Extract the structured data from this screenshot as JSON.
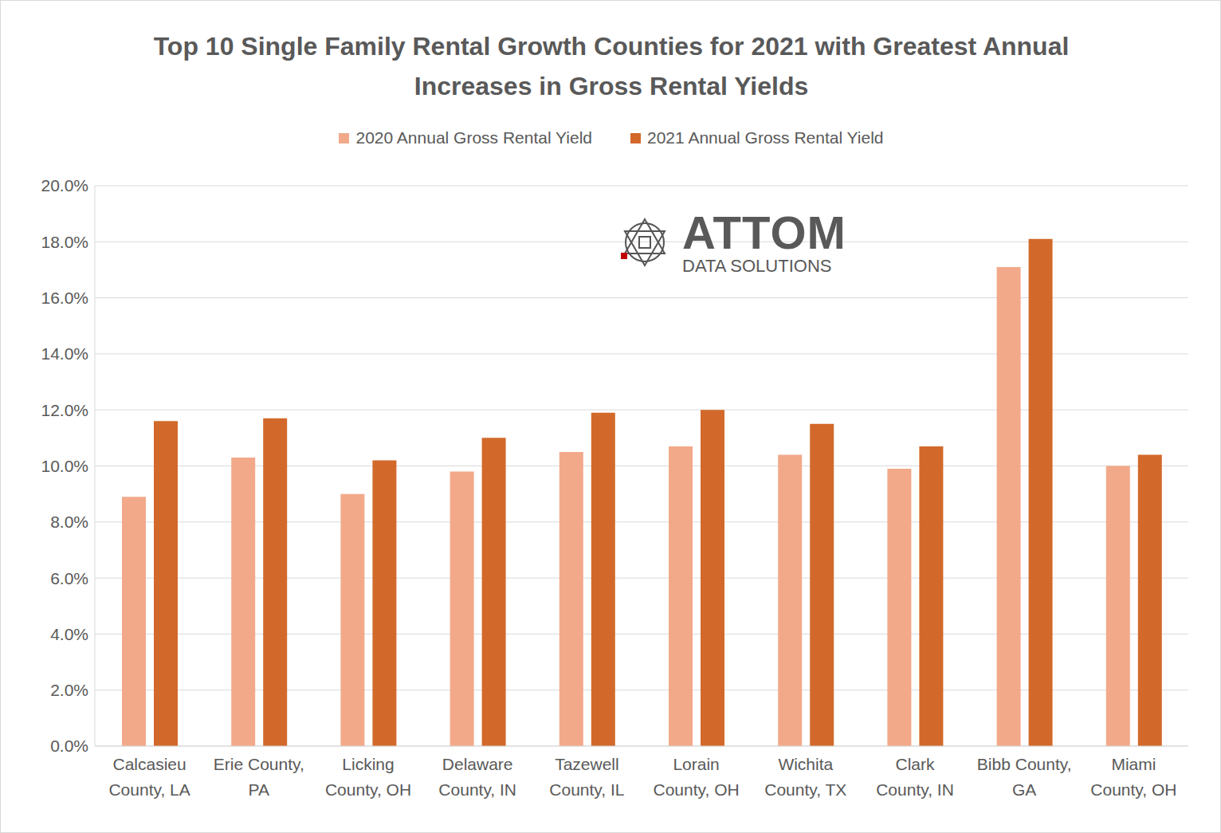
{
  "chart_data": {
    "type": "bar",
    "title": "Top 10 Single Family Rental Growth Counties for 2021 with Greatest Annual Increases in Gross Rental Yields",
    "categories": [
      "Calcasieu County, LA",
      "Erie County, PA",
      "Licking County, OH",
      "Delaware County, IN",
      "Tazewell County, IL",
      "Lorain County, OH",
      "Wichita County, TX",
      "Clark County, IN",
      "Bibb County, GA",
      "Miami County, OH"
    ],
    "series": [
      {
        "name": "2020 Annual Gross Rental Yield",
        "color": "#f2a98a",
        "values": [
          8.9,
          10.3,
          9.0,
          9.8,
          10.5,
          10.7,
          10.4,
          9.9,
          17.1,
          10.0
        ]
      },
      {
        "name": "2021 Annual Gross Rental Yield",
        "color": "#d2692b",
        "values": [
          11.6,
          11.7,
          10.2,
          11.0,
          11.9,
          12.0,
          11.5,
          10.7,
          18.1,
          10.4
        ]
      }
    ],
    "ylim": [
      0,
      20
    ],
    "yticks": [
      {
        "value": 0,
        "label": "0.0%"
      },
      {
        "value": 2,
        "label": "2.0%"
      },
      {
        "value": 4,
        "label": "4.0%"
      },
      {
        "value": 6,
        "label": "6.0%"
      },
      {
        "value": 8,
        "label": "8.0%"
      },
      {
        "value": 10,
        "label": "10.0%"
      },
      {
        "value": 12,
        "label": "12.0%"
      },
      {
        "value": 14,
        "label": "14.0%"
      },
      {
        "value": 16,
        "label": "16.0%"
      },
      {
        "value": 18,
        "label": "18.0%"
      },
      {
        "value": 20,
        "label": "20.0%"
      }
    ],
    "grid": true,
    "legend": "top",
    "annotations": [
      "ATTOM",
      "DATA SOLUTIONS"
    ]
  }
}
